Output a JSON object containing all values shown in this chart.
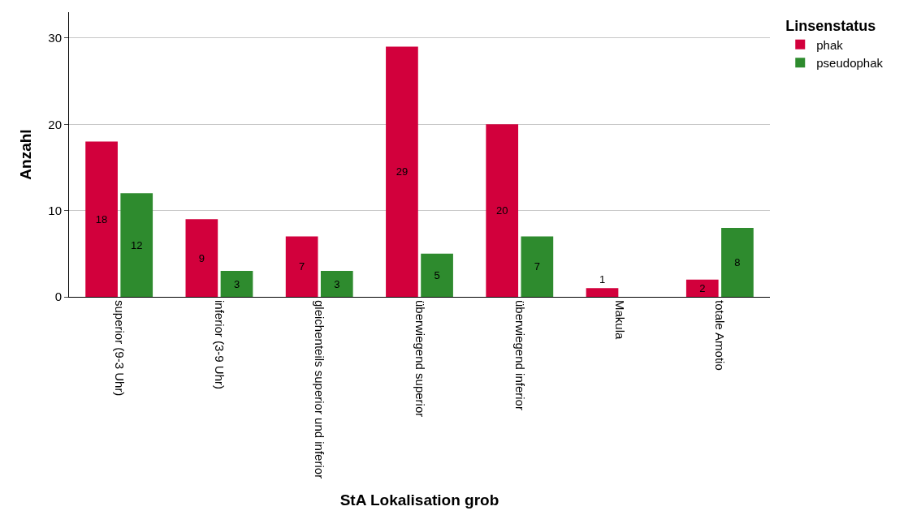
{
  "chart_data": {
    "type": "bar",
    "xlabel": "StA Lokalisation grob",
    "ylabel": "Anzahl",
    "legend_title": "Linsenstatus",
    "categories": [
      "superior (9-3 Uhr)",
      "inferior (3-9 Uhr)",
      "gleichenteils superior und inferior",
      "überwiegend superior",
      "überwiegend inferior",
      "Makula",
      "totale Amotio"
    ],
    "series": [
      {
        "name": "phak",
        "color": "#d2003c",
        "values": [
          18,
          9,
          7,
          29,
          20,
          1,
          2
        ]
      },
      {
        "name": "pseudophak",
        "color": "#2e8b2e",
        "values": [
          12,
          3,
          3,
          5,
          7,
          null,
          8
        ]
      }
    ],
    "ylim": [
      0,
      33
    ],
    "yticks": [
      0,
      10,
      20,
      30
    ],
    "grid": "y",
    "legend": "top right",
    "data_labels": true
  }
}
